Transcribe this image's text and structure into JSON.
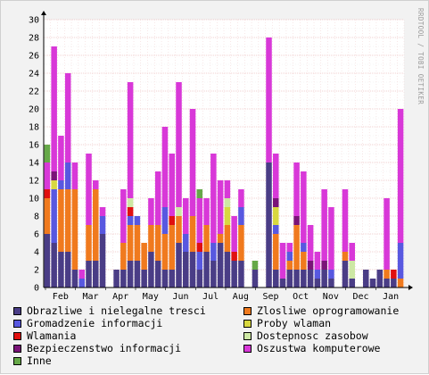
{
  "watermark": "RRDTOOL / TOBI OETIKER",
  "colors": {
    "Obrazliwe i nielegalne tresci": "#4a3d86",
    "Zlosliwe oprogramowanie": "#f07a1e",
    "Gromadzenie informacji": "#5858e0",
    "Proby wlaman": "#d8d840",
    "Wlamania": "#e01010",
    "Dostepnosc zasobow": "#cde8a4",
    "Bezpieczenstwo informacji": "#7a1478",
    "Oszustwa komputerowe": "#d838d8",
    "Inne": "#66a848"
  },
  "chart_data": {
    "type": "bar",
    "stacked": true,
    "ylim": [
      0,
      30
    ],
    "yticks": [
      0,
      2,
      4,
      6,
      8,
      10,
      12,
      14,
      16,
      18,
      20,
      22,
      24,
      26,
      28,
      30
    ],
    "xtick_labels": [
      "Feb",
      "Mar",
      "Apr",
      "May",
      "Jun",
      "Jul",
      "Aug",
      "Sep",
      "Oct",
      "Nov",
      "Dec",
      "Jan"
    ],
    "grid": true,
    "legend_position": "bottom",
    "weeks": 52,
    "series": [
      {
        "name": "Obrazliwe i nielegalne tresci",
        "values": [
          6,
          5,
          4,
          4,
          2,
          0,
          3,
          3,
          6,
          0,
          2,
          2,
          3,
          3,
          2,
          4,
          3,
          2,
          2,
          5,
          4,
          4,
          2,
          4,
          3,
          5,
          4,
          3,
          3,
          0,
          2,
          0,
          14,
          2,
          1,
          2,
          2,
          2,
          2,
          1,
          2,
          1,
          0,
          3,
          1,
          0,
          2,
          1,
          2,
          1,
          1,
          0
        ]
      },
      {
        "name": "Zlosliwe oprogramowanie",
        "values": [
          4,
          0,
          7,
          7,
          9,
          0,
          4,
          8,
          0,
          0,
          0,
          3,
          4,
          4,
          3,
          3,
          4,
          4,
          5,
          3,
          0,
          4,
          0,
          3,
          0,
          1,
          3,
          0,
          4,
          0,
          0,
          0,
          0,
          4,
          0,
          1,
          5,
          2,
          0,
          0,
          0,
          0,
          0,
          1,
          0,
          0,
          0,
          0,
          0,
          1,
          0,
          1
        ]
      },
      {
        "name": "Gromadzenie informacji",
        "values": [
          0,
          6,
          1,
          3,
          0,
          1,
          0,
          0,
          2,
          0,
          0,
          0,
          1,
          1,
          0,
          0,
          0,
          3,
          0,
          0,
          2,
          0,
          2,
          0,
          2,
          0,
          0,
          0,
          2,
          0,
          0,
          0,
          0,
          1,
          0,
          1,
          0,
          1,
          0,
          1,
          0,
          1,
          0,
          0,
          0,
          0,
          0,
          0,
          0,
          0,
          0,
          4
        ]
      },
      {
        "name": "Proby wlaman",
        "values": [
          0,
          1,
          0,
          0,
          0,
          0,
          0,
          0,
          0,
          0,
          0,
          0,
          0,
          0,
          0,
          0,
          0,
          0,
          0,
          0,
          0,
          0,
          0,
          0,
          0,
          0,
          2,
          0,
          0,
          0,
          0,
          0,
          0,
          2,
          0,
          0,
          0,
          0,
          0,
          0,
          0,
          0,
          0,
          0,
          0,
          0,
          0,
          0,
          0,
          0,
          0,
          0
        ]
      },
      {
        "name": "Wlamania",
        "values": [
          1,
          0,
          0,
          0,
          0,
          0,
          0,
          0,
          0,
          0,
          0,
          0,
          1,
          0,
          0,
          0,
          0,
          0,
          1,
          0,
          0,
          0,
          1,
          0,
          0,
          0,
          0,
          1,
          0,
          0,
          0,
          0,
          0,
          0,
          0,
          0,
          0,
          0,
          0,
          0,
          0,
          0,
          0,
          0,
          0,
          0,
          0,
          0,
          0,
          0,
          1,
          0
        ]
      },
      {
        "name": "Dostepnosc zasobow",
        "values": [
          0,
          0,
          0,
          0,
          0,
          0,
          0,
          0,
          0,
          0,
          0,
          0,
          1,
          0,
          0,
          0,
          0,
          0,
          0,
          1,
          0,
          0,
          0,
          0,
          0,
          0,
          1,
          0,
          0,
          0,
          0,
          0,
          0,
          0,
          0,
          0,
          0,
          0,
          0,
          0,
          0,
          0,
          0,
          0,
          2,
          0,
          0,
          0,
          0,
          0,
          0,
          0
        ]
      },
      {
        "name": "Bezpieczenstwo informacji",
        "values": [
          0,
          1,
          0,
          0,
          0,
          0,
          0,
          0,
          0,
          0,
          0,
          0,
          0,
          0,
          0,
          0,
          0,
          0,
          0,
          0,
          0,
          0,
          0,
          0,
          0,
          0,
          0,
          0,
          0,
          0,
          0,
          0,
          0,
          1,
          0,
          0,
          1,
          0,
          1,
          0,
          1,
          0,
          0,
          0,
          0,
          0,
          0,
          0,
          0,
          0,
          0,
          0
        ]
      },
      {
        "name": "Oszustwa komputerowe",
        "values": [
          3,
          14,
          5,
          10,
          3,
          1,
          8,
          1,
          1,
          0,
          0,
          6,
          13,
          0,
          0,
          3,
          6,
          9,
          7,
          14,
          4,
          12,
          5,
          3,
          10,
          6,
          2,
          4,
          2,
          0,
          0,
          0,
          14,
          5,
          4,
          1,
          6,
          8,
          4,
          2,
          8,
          7,
          0,
          7,
          2,
          0,
          0,
          0,
          0,
          8,
          0,
          15
        ]
      },
      {
        "name": "Inne",
        "values": [
          2,
          0,
          0,
          0,
          0,
          0,
          0,
          0,
          0,
          0,
          0,
          0,
          0,
          0,
          0,
          0,
          0,
          0,
          0,
          0,
          0,
          0,
          1,
          0,
          0,
          0,
          0,
          0,
          0,
          0,
          1,
          0,
          0,
          0,
          0,
          0,
          0,
          0,
          0,
          0,
          0,
          0,
          0,
          0,
          0,
          0,
          0,
          0,
          0,
          0,
          0,
          0
        ]
      }
    ]
  },
  "legend_items": [
    "Obrazliwe i nielegalne tresci",
    "Zlosliwe oprogramowanie",
    "Gromadzenie informacji",
    "Proby wlaman",
    "Wlamania",
    "Dostepnosc zasobow",
    "Bezpieczenstwo informacji",
    "Oszustwa komputerowe",
    "Inne"
  ]
}
